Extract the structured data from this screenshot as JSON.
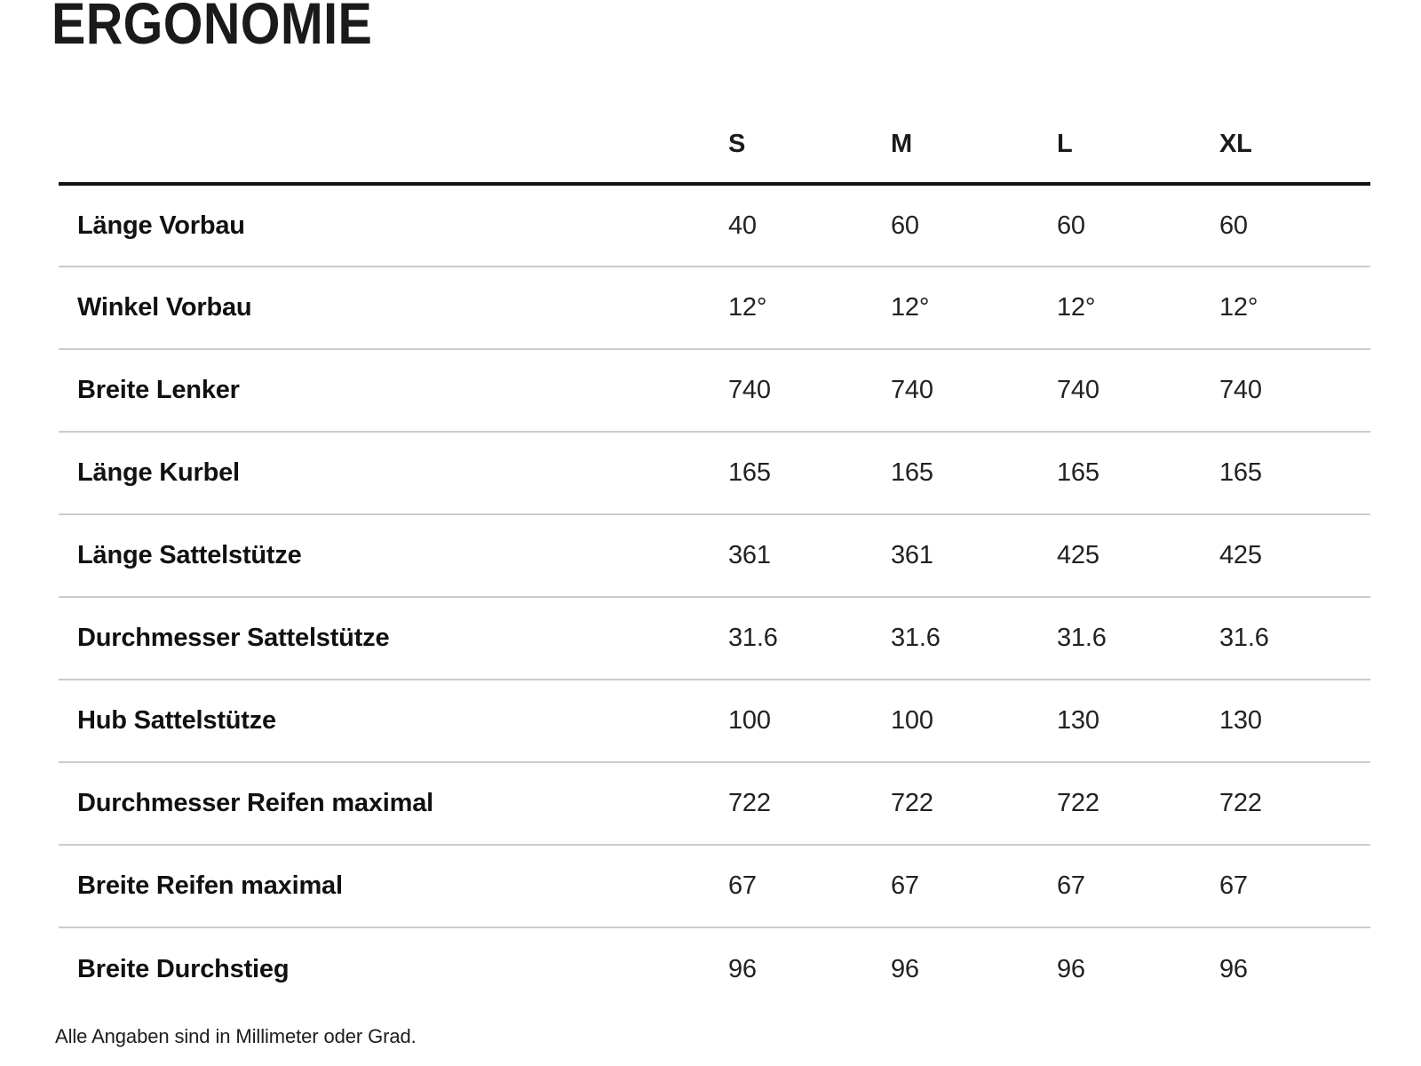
{
  "page": {
    "title": "ERGONOMIE",
    "footnote": "Alle Angaben sind in Millimeter oder Grad."
  },
  "table": {
    "size_columns": [
      "S",
      "M",
      "L",
      "XL"
    ],
    "rows": [
      {
        "label": "Länge Vorbau",
        "values": [
          "40",
          "60",
          "60",
          "60"
        ]
      },
      {
        "label": "Winkel Vorbau",
        "values": [
          "12°",
          "12°",
          "12°",
          "12°"
        ]
      },
      {
        "label": "Breite Lenker",
        "values": [
          "740",
          "740",
          "740",
          "740"
        ]
      },
      {
        "label": "Länge Kurbel",
        "values": [
          "165",
          "165",
          "165",
          "165"
        ]
      },
      {
        "label": "Länge Sattelstütze",
        "values": [
          "361",
          "361",
          "425",
          "425"
        ]
      },
      {
        "label": "Durchmesser Sattelstütze",
        "values": [
          "31.6",
          "31.6",
          "31.6",
          "31.6"
        ]
      },
      {
        "label": "Hub Sattelstütze",
        "values": [
          "100",
          "100",
          "130",
          "130"
        ]
      },
      {
        "label": "Durchmesser Reifen maximal",
        "values": [
          "722",
          "722",
          "722",
          "722"
        ]
      },
      {
        "label": "Breite Reifen maximal",
        "values": [
          "67",
          "67",
          "67",
          "67"
        ]
      },
      {
        "label": "Breite Durchstieg",
        "values": [
          "96",
          "96",
          "96",
          "96"
        ]
      }
    ]
  },
  "colors": {
    "text": "#1a1a1a",
    "header_rule": "#141414",
    "row_rule": "#c8cdca"
  }
}
